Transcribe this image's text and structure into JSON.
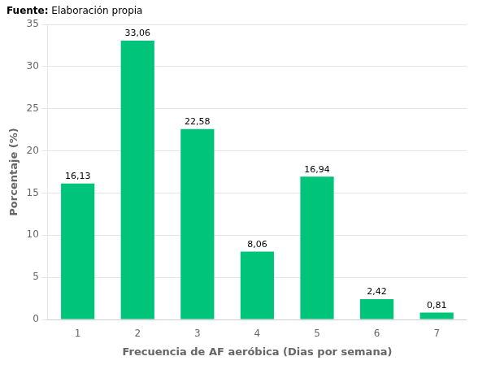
{
  "chart_data": {
    "type": "bar",
    "annotations": [
      "Fuente:",
      " Elaboración propia"
    ],
    "categories": [
      1,
      2,
      3,
      4,
      5,
      6,
      7
    ],
    "values": [
      16.13,
      33.06,
      22.58,
      8.06,
      16.94,
      2.42,
      0.81
    ],
    "value_labels": [
      "16,13",
      "33,06",
      "22,58",
      "8,06",
      "16,94",
      "2,42",
      "0,81"
    ],
    "data_labels": true,
    "color": "#00C47A",
    "xlabel": "Frecuencia de AF aeróbica (Dias por semana)",
    "ylabel": "Porcentaje (%)",
    "ylim": [
      0,
      35
    ],
    "yticks": [
      0,
      5,
      10,
      15,
      20,
      25,
      30,
      35
    ],
    "grid": true
  }
}
